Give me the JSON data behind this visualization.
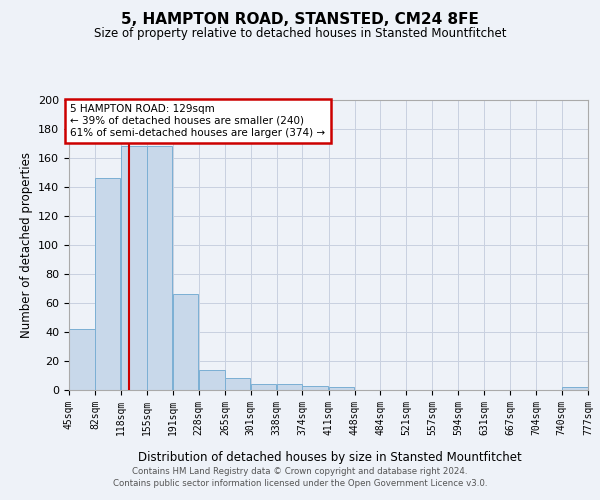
{
  "title": "5, HAMPTON ROAD, STANSTED, CM24 8FE",
  "subtitle": "Size of property relative to detached houses in Stansted Mountfitchet",
  "xlabel": "Distribution of detached houses by size in Stansted Mountfitchet",
  "ylabel": "Number of detached properties",
  "footer1": "Contains HM Land Registry data © Crown copyright and database right 2024.",
  "footer2": "Contains public sector information licensed under the Open Government Licence v3.0.",
  "bins": [
    45,
    82,
    118,
    155,
    191,
    228,
    265,
    301,
    338,
    374,
    411,
    448,
    484,
    521,
    557,
    594,
    631,
    667,
    704,
    740,
    777
  ],
  "counts": [
    42,
    146,
    168,
    168,
    66,
    14,
    8,
    4,
    4,
    3,
    2,
    0,
    0,
    0,
    0,
    0,
    0,
    0,
    0,
    2,
    0
  ],
  "bar_color": "#c8d8ea",
  "bar_edge_color": "#7bafd4",
  "grid_color": "#c8d0e0",
  "background_color": "#eef2f8",
  "vline_x": 129,
  "vline_color": "#cc0000",
  "annotation_text": "5 HAMPTON ROAD: 129sqm\n← 39% of detached houses are smaller (240)\n61% of semi-detached houses are larger (374) →",
  "annotation_box_color": "#ffffff",
  "annotation_box_edge": "#cc0000",
  "ylim": [
    0,
    200
  ],
  "yticks": [
    0,
    20,
    40,
    60,
    80,
    100,
    120,
    140,
    160,
    180,
    200
  ],
  "tick_labels": [
    "45sqm",
    "82sqm",
    "118sqm",
    "155sqm",
    "191sqm",
    "228sqm",
    "265sqm",
    "301sqm",
    "338sqm",
    "374sqm",
    "411sqm",
    "448sqm",
    "484sqm",
    "521sqm",
    "557sqm",
    "594sqm",
    "631sqm",
    "667sqm",
    "704sqm",
    "740sqm",
    "777sqm"
  ]
}
